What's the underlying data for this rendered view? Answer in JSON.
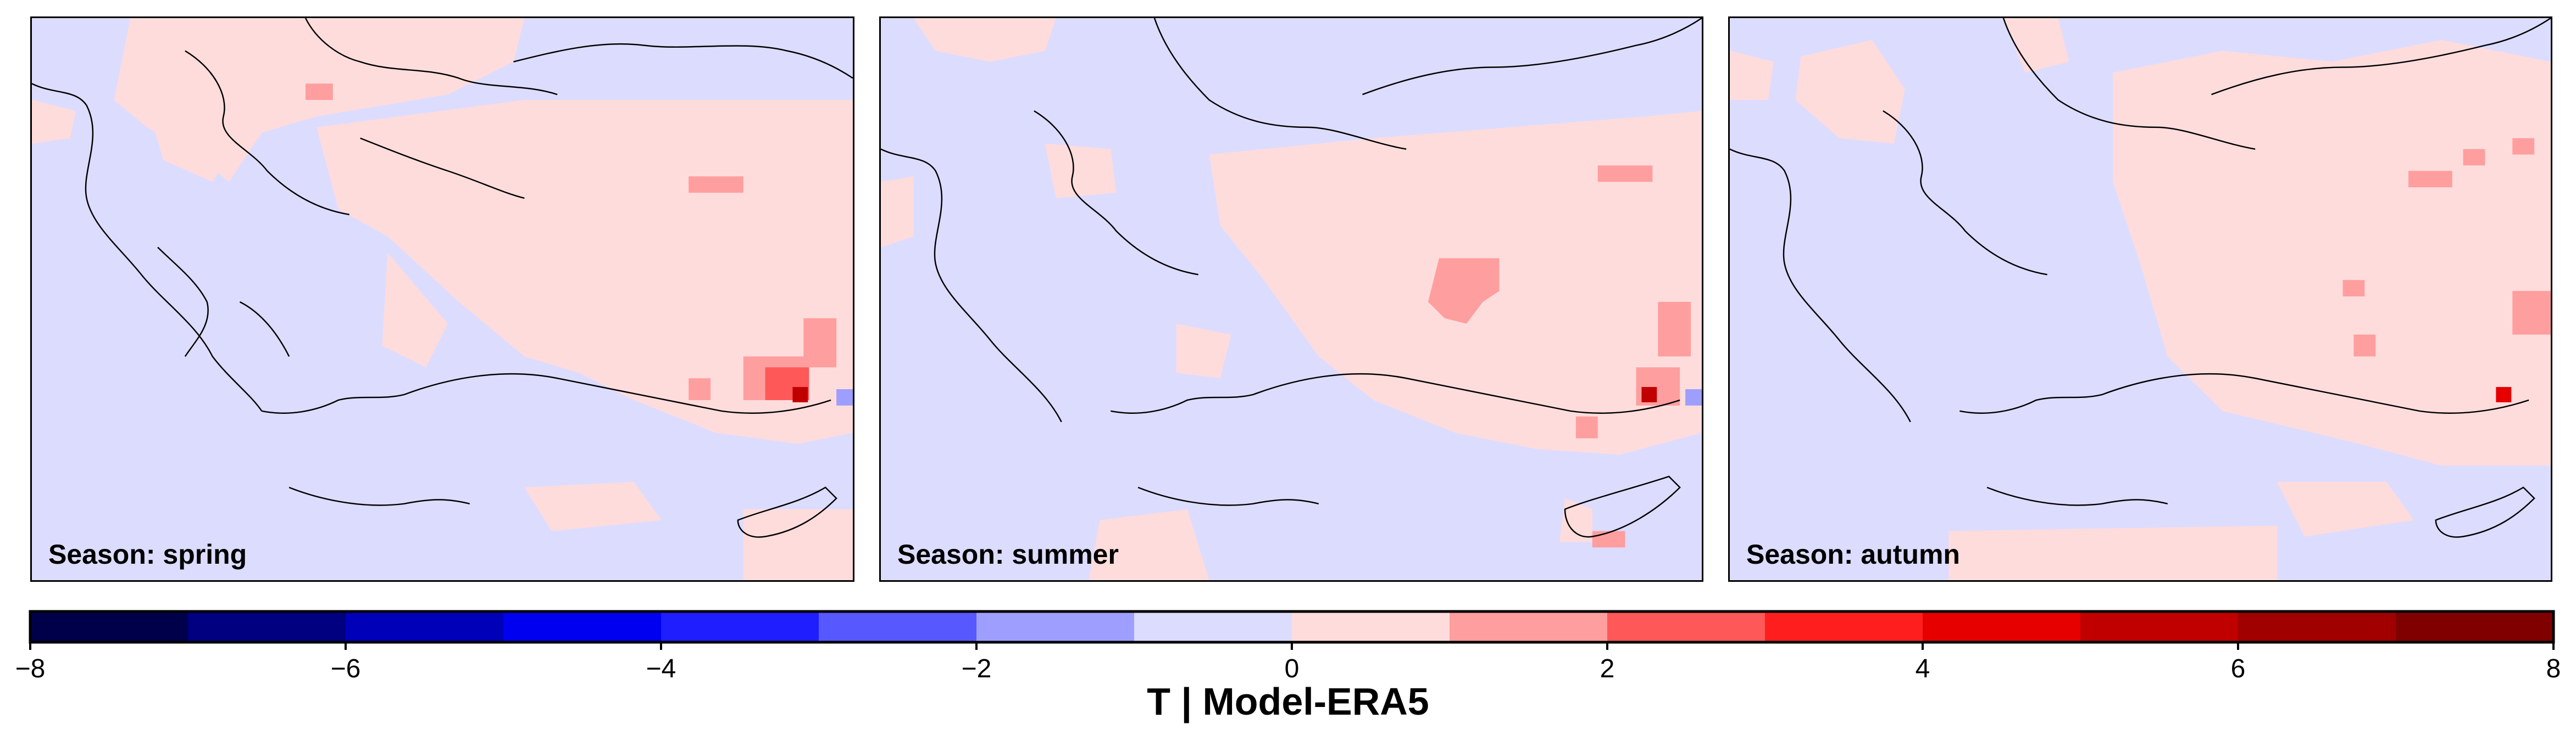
{
  "panels": [
    {
      "label": "Season: spring"
    },
    {
      "label": "Season: summer"
    },
    {
      "label": "Season: autumn"
    }
  ],
  "colorbar": {
    "title": "T | Model-ERA5",
    "ticks": [
      "−8",
      "−6",
      "−4",
      "−2",
      "0",
      "2",
      "4",
      "6",
      "8"
    ],
    "range": [
      -8,
      8
    ],
    "step": 1,
    "colors": [
      "#00004a",
      "#000080",
      "#0000b8",
      "#0000f0",
      "#1e1eff",
      "#5858ff",
      "#9e9eff",
      "#dcdcff",
      "#ffdcdc",
      "#ff9e9e",
      "#ff5858",
      "#ff1e1e",
      "#e60000",
      "#c00000",
      "#a00000",
      "#800000"
    ]
  },
  "legend_colors": {
    "neutral_negative": "#dcdcff",
    "neutral_positive": "#ffdcdc"
  }
}
